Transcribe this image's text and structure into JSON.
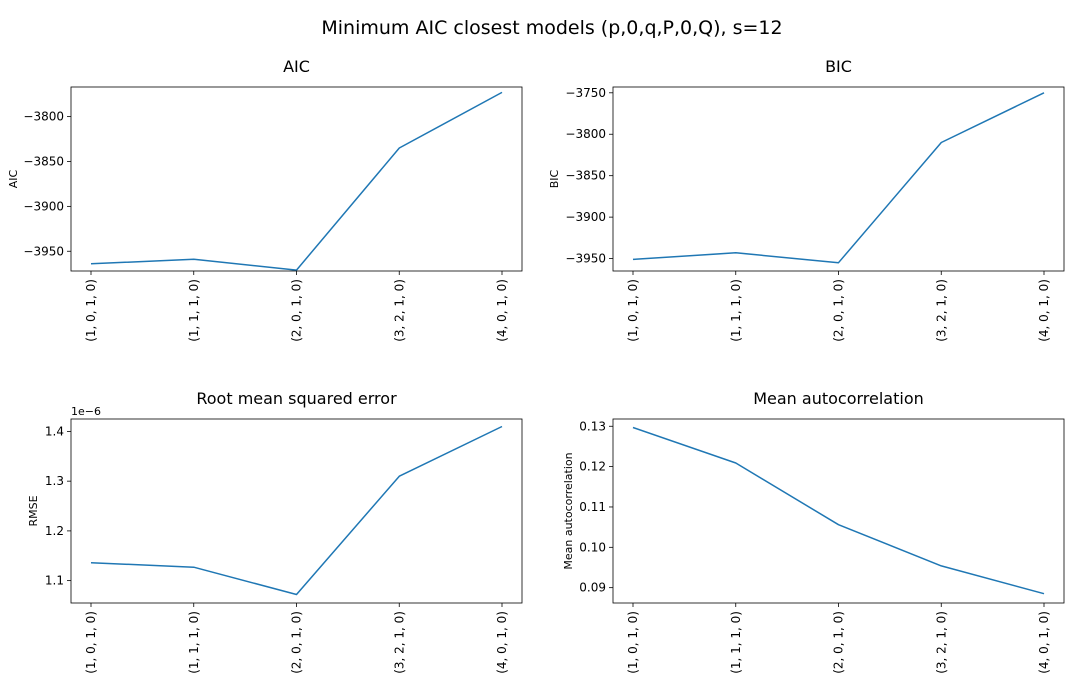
{
  "figure": {
    "suptitle": "Minimum AIC closest models (p,0,q,P,0,Q), s=12"
  },
  "chart_data": [
    {
      "type": "line",
      "title": "AIC",
      "xlabel": "",
      "ylabel": "AIC",
      "categories": [
        "(1, 0, 1, 0)",
        "(1, 1, 1, 0)",
        "(2, 0, 1, 0)",
        "(3, 2, 1, 0)",
        "(4, 0, 1, 0)"
      ],
      "values": [
        -3964,
        -3959,
        -3971,
        -3835,
        -3773
      ],
      "ylim": [
        -3972,
        -3767
      ],
      "yticks": [
        -3950,
        -3900,
        -3850,
        -3800
      ],
      "ytick_labels": [
        "−3950",
        "−3900",
        "−3850",
        "−3800"
      ],
      "color": "#1f77b4",
      "grid": false
    },
    {
      "type": "line",
      "title": "BIC",
      "xlabel": "",
      "ylabel": "BIC",
      "categories": [
        "(1, 0, 1, 0)",
        "(1, 1, 1, 0)",
        "(2, 0, 1, 0)",
        "(3, 2, 1, 0)",
        "(4, 0, 1, 0)"
      ],
      "values": [
        -3951,
        -3943,
        -3955,
        -3810,
        -3750
      ],
      "ylim": [
        -3965,
        -3743
      ],
      "yticks": [
        -3950,
        -3900,
        -3850,
        -3800,
        -3750
      ],
      "ytick_labels": [
        "−3950",
        "−3900",
        "−3850",
        "−3800",
        "−3750"
      ],
      "color": "#1f77b4",
      "grid": false
    },
    {
      "type": "line",
      "title": "Root mean squared error",
      "xlabel": "",
      "ylabel": "RMSE",
      "offset_text": "1e−6",
      "categories": [
        "(1, 0, 1, 0)",
        "(1, 1, 1, 0)",
        "(2, 0, 1, 0)",
        "(3, 2, 1, 0)",
        "(4, 0, 1, 0)"
      ],
      "values": [
        1.136,
        1.127,
        1.072,
        1.31,
        1.41
      ],
      "ylim": [
        1.055,
        1.425
      ],
      "yticks": [
        1.1,
        1.2,
        1.3,
        1.4
      ],
      "ytick_labels": [
        "1.1",
        "1.2",
        "1.3",
        "1.4"
      ],
      "color": "#1f77b4",
      "grid": false
    },
    {
      "type": "line",
      "title": "Mean autocorrelation",
      "xlabel": "",
      "ylabel": "Mean autocorrelation",
      "categories": [
        "(1, 0, 1, 0)",
        "(1, 1, 1, 0)",
        "(2, 0, 1, 0)",
        "(3, 2, 1, 0)",
        "(4, 0, 1, 0)"
      ],
      "values": [
        0.1297,
        0.1209,
        0.1056,
        0.0954,
        0.0885
      ],
      "ylim": [
        0.0862,
        0.1318
      ],
      "yticks": [
        0.09,
        0.1,
        0.11,
        0.12,
        0.13
      ],
      "ytick_labels": [
        "0.09",
        "0.10",
        "0.11",
        "0.12",
        "0.13"
      ],
      "color": "#1f77b4",
      "grid": false
    }
  ]
}
